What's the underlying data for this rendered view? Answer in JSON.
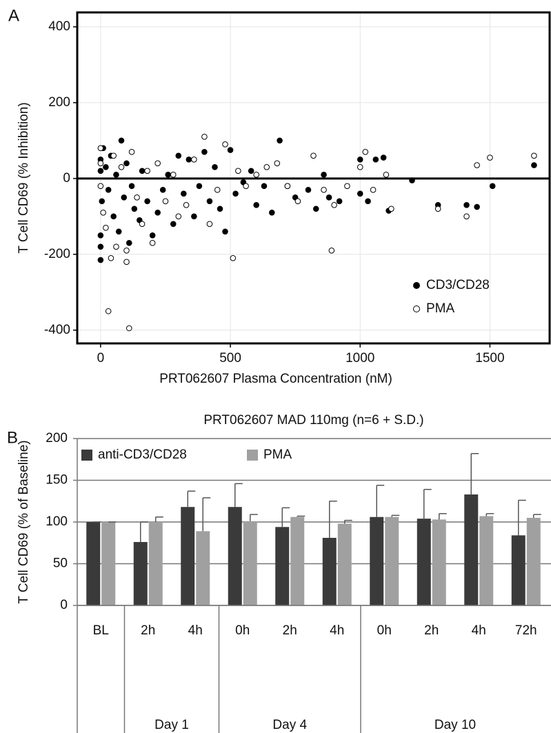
{
  "chart_data": [
    {
      "type": "scatter",
      "panel_label": "A",
      "x_label": "PRT062607 Plasma Concentration (nM)",
      "y_label": "T Cell CD69 (% Inhibition)",
      "xlim": [
        -90,
        1730
      ],
      "ylim": [
        -435,
        438
      ],
      "xticks": [
        0,
        500,
        1000,
        1500
      ],
      "yticks": [
        -400,
        -200,
        0,
        200,
        400
      ],
      "grid": true,
      "legend": "lower right",
      "series": [
        {
          "name": "CD3/CD28",
          "color": "#000000",
          "filled": true,
          "x": [
            0,
            0,
            0,
            0,
            0,
            5,
            10,
            20,
            30,
            40,
            50,
            60,
            70,
            80,
            90,
            100,
            110,
            120,
            130,
            150,
            160,
            180,
            200,
            220,
            240,
            260,
            280,
            300,
            320,
            340,
            360,
            380,
            400,
            420,
            440,
            460,
            480,
            500,
            520,
            550,
            580,
            600,
            630,
            660,
            690,
            720,
            750,
            800,
            830,
            860,
            880,
            920,
            1000,
            1000,
            1030,
            1060,
            1090,
            1110,
            1200,
            1300,
            1410,
            1450,
            1510,
            1670
          ],
          "values": [
            -215,
            -180,
            -150,
            50,
            20,
            -60,
            80,
            30,
            -30,
            60,
            -100,
            10,
            -140,
            100,
            -50,
            40,
            -170,
            -20,
            -80,
            -110,
            20,
            -60,
            -150,
            -90,
            -30,
            10,
            -120,
            60,
            -40,
            50,
            -100,
            -20,
            70,
            -60,
            30,
            -80,
            -140,
            75,
            -40,
            -10,
            20,
            -70,
            -20,
            -90,
            100,
            -20,
            -50,
            -30,
            -80,
            10,
            -50,
            -60,
            50,
            -40,
            -60,
            50,
            55,
            -85,
            -5,
            -70,
            -70,
            -75,
            -20,
            35
          ]
        },
        {
          "name": "PMA",
          "color": "#000000",
          "filled": false,
          "x": [
            0,
            0,
            0,
            10,
            20,
            30,
            40,
            50,
            60,
            80,
            100,
            100,
            110,
            120,
            140,
            160,
            180,
            200,
            220,
            250,
            280,
            300,
            330,
            360,
            400,
            420,
            450,
            480,
            510,
            530,
            560,
            600,
            640,
            680,
            720,
            760,
            820,
            860,
            890,
            900,
            950,
            1000,
            1020,
            1050,
            1100,
            1120,
            1300,
            1410,
            1450,
            1500,
            1670
          ],
          "values": [
            80,
            -20,
            40,
            -90,
            -130,
            -350,
            -210,
            60,
            -180,
            30,
            -220,
            -190,
            -395,
            70,
            -50,
            -120,
            20,
            -170,
            40,
            -60,
            10,
            -100,
            -70,
            50,
            110,
            -120,
            -30,
            90,
            -210,
            20,
            -20,
            10,
            30,
            40,
            -20,
            -60,
            60,
            -30,
            -190,
            -70,
            -20,
            30,
            70,
            -30,
            10,
            -80,
            -80,
            -100,
            35,
            55,
            60
          ]
        }
      ]
    },
    {
      "type": "bar",
      "panel_label": "B",
      "title": "PRT062607 MAD 110mg (n=6 + S.D.)",
      "y_label": "T Cell CD69 (% of Baseline)",
      "categories": [
        "BL",
        "2h",
        "4h",
        "0h",
        "2h",
        "4h",
        "0h",
        "2h",
        "4h",
        "72h"
      ],
      "x_groups": [
        null,
        "Day 1",
        "Day 1",
        "Day 4",
        "Day 4",
        "Day 4",
        "Day 10",
        "Day 10",
        "Day 10",
        "Day 10"
      ],
      "ylim": [
        0,
        200
      ],
      "yticks": [
        0,
        50,
        100,
        150,
        200
      ],
      "grid": true,
      "legend": "upper left",
      "series": [
        {
          "name": "anti-CD3/CD28",
          "color": "#3a3a3a",
          "values": [
            100,
            76,
            118,
            118,
            94,
            81,
            106,
            104,
            133,
            84
          ],
          "errors": [
            0,
            24,
            19,
            28,
            23,
            44,
            38,
            35,
            49,
            42
          ]
        },
        {
          "name": "PMA",
          "color": "#a0a0a0",
          "values": [
            100,
            100,
            89,
            101,
            106,
            98,
            106,
            103,
            107,
            105
          ],
          "errors": [
            0,
            6,
            40,
            8,
            1,
            4,
            2,
            7,
            3,
            4
          ]
        }
      ]
    }
  ]
}
